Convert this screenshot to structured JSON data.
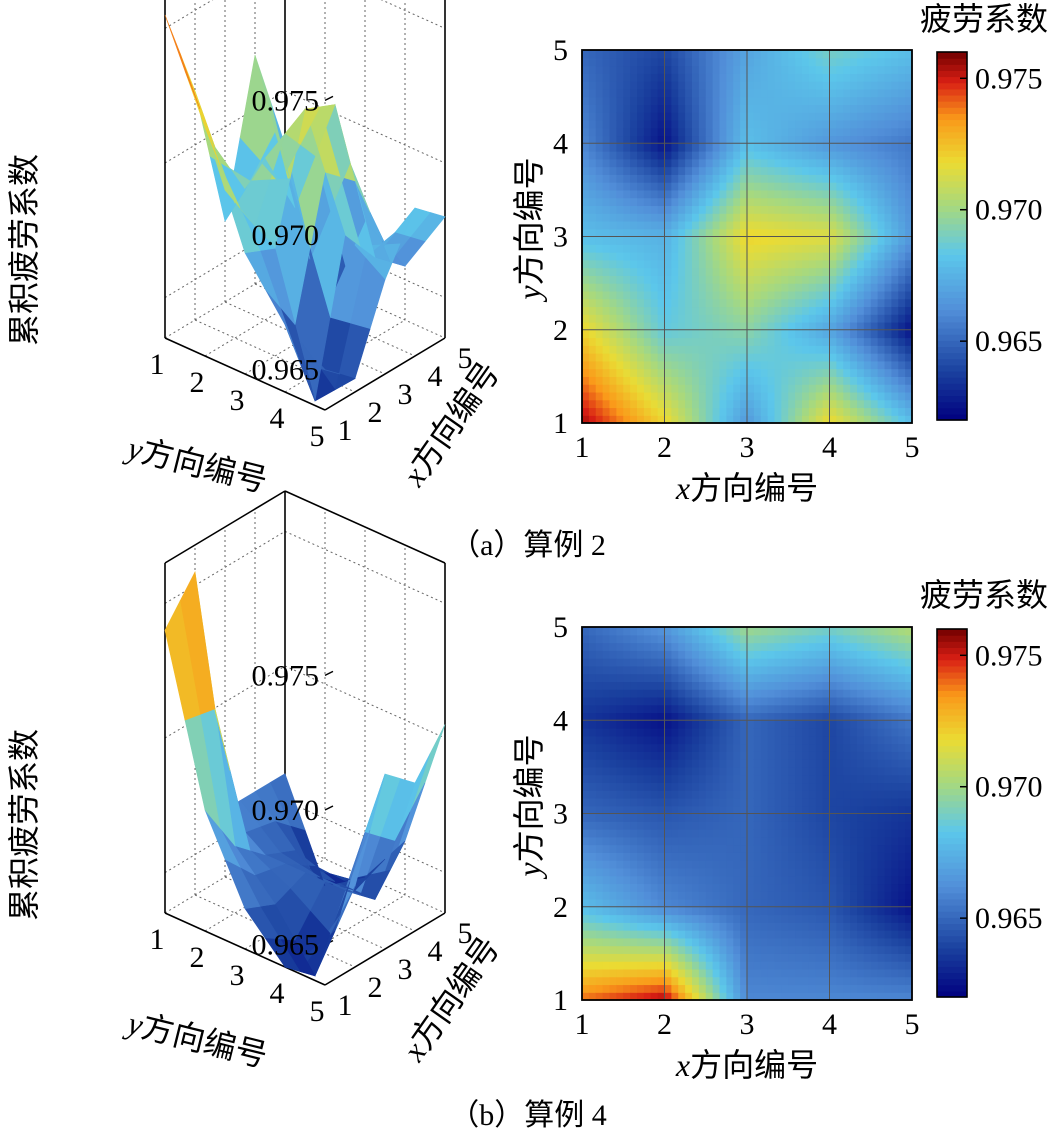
{
  "chart_data": [
    {
      "type": "heatmap",
      "caption": "（a）算例 2",
      "surface_axes": {
        "zlabel": "累积疲劳系数",
        "x_letter": "x",
        "xlabel_rest": "方向编号",
        "y_letter": "y",
        "ylabel_rest": "方向编号",
        "x_ticks": [
          "1",
          "2",
          "3",
          "4",
          "5"
        ],
        "y_ticks": [
          "5",
          "4",
          "3",
          "2",
          "1"
        ],
        "z_ticks": [
          "0.975",
          "0.970",
          "0.965"
        ]
      },
      "map_axes": {
        "x_letter": "x",
        "xlabel_rest": "方向编号",
        "y_letter": "y",
        "ylabel_rest": "方向编号",
        "x_ticks": [
          "1",
          "2",
          "3",
          "4",
          "5"
        ],
        "y_ticks": [
          "1",
          "2",
          "3",
          "4",
          "5"
        ]
      },
      "colorbar": {
        "title": "疲劳系数",
        "ticks": [
          "0.975",
          "0.970",
          "0.965"
        ],
        "range": [
          0.962,
          0.976
        ]
      },
      "x": [
        1,
        2,
        3,
        4,
        5
      ],
      "y": [
        1,
        2,
        3,
        4,
        5
      ],
      "z": [
        [
          0.9755,
          0.972,
          0.9665,
          0.972,
          0.968
        ],
        [
          0.972,
          0.9685,
          0.9695,
          0.967,
          0.9625
        ],
        [
          0.968,
          0.9675,
          0.972,
          0.9715,
          0.9665
        ],
        [
          0.966,
          0.9625,
          0.968,
          0.9665,
          0.9655
        ],
        [
          0.965,
          0.964,
          0.967,
          0.969,
          0.968
        ]
      ]
    },
    {
      "type": "heatmap",
      "caption": "（b）算例 4",
      "surface_axes": {
        "zlabel": "累积疲劳系数",
        "x_letter": "x",
        "xlabel_rest": "方向编号",
        "y_letter": "y",
        "ylabel_rest": "方向编号",
        "x_ticks": [
          "1",
          "2",
          "3",
          "4",
          "5"
        ],
        "y_ticks": [
          "5",
          "4",
          "3",
          "2",
          "1"
        ],
        "z_ticks": [
          "0.975",
          "0.970",
          "0.965"
        ]
      },
      "map_axes": {
        "x_letter": "x",
        "xlabel_rest": "方向编号",
        "y_letter": "y",
        "ylabel_rest": "方向编号",
        "x_ticks": [
          "1",
          "2",
          "3",
          "4",
          "5"
        ],
        "y_ticks": [
          "1",
          "2",
          "3",
          "4",
          "5"
        ]
      },
      "colorbar": {
        "title": "疲劳系数",
        "ticks": [
          "0.975",
          "0.970",
          "0.965"
        ],
        "range": [
          0.962,
          0.976
        ]
      },
      "x": [
        1,
        2,
        3,
        4,
        5
      ],
      "y": [
        1,
        2,
        3,
        4,
        5
      ],
      "z": [
        [
          0.974,
          0.9755,
          0.966,
          0.966,
          0.966
        ],
        [
          0.968,
          0.966,
          0.965,
          0.9645,
          0.9625
        ],
        [
          0.965,
          0.9645,
          0.965,
          0.964,
          0.9635
        ],
        [
          0.9635,
          0.9625,
          0.965,
          0.964,
          0.9655
        ],
        [
          0.965,
          0.9665,
          0.97,
          0.969,
          0.9705
        ]
      ]
    }
  ]
}
